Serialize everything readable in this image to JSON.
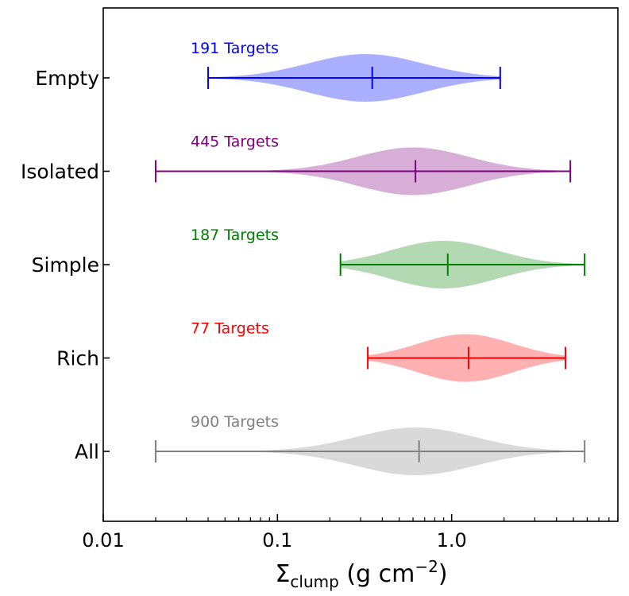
{
  "chart_data": {
    "type": "violin",
    "orientation": "horizontal",
    "xscale": "log",
    "xlim": [
      0.01,
      9.0
    ],
    "xlabel": {
      "base": "Σ",
      "subscript": "clump",
      "units_prefix": " (g cm",
      "superscript": "−2",
      "units_suffix": ")"
    },
    "xticks": [
      {
        "value": 0.01,
        "label": "0.01"
      },
      {
        "value": 0.1,
        "label": "0.1"
      },
      {
        "value": 1.0,
        "label": "1.0"
      }
    ],
    "categories": [
      "Empty",
      "Isolated",
      "Simple",
      "Rich",
      "All"
    ],
    "series": [
      {
        "name": "Empty",
        "count_label": "191 Targets",
        "color": "#0000ff",
        "fill": "#aab0ff",
        "min": 0.04,
        "median": 0.35,
        "max": 1.9,
        "peak": 0.32,
        "width": 0.26,
        "spread": 0.33
      },
      {
        "name": "Isolated",
        "count_label": "445 Targets",
        "color": "#800080",
        "fill": "#d6aed6",
        "min": 0.02,
        "median": 0.62,
        "max": 4.8,
        "peak": 0.6,
        "width": 0.26,
        "spread": 0.32
      },
      {
        "name": "Simple",
        "count_label": "187 Targets",
        "color": "#008000",
        "fill": "#b3d9b3",
        "min": 0.23,
        "median": 0.95,
        "max": 5.8,
        "peak": 0.9,
        "width": 0.26,
        "spread": 0.3
      },
      {
        "name": "Rich",
        "count_label": "77 Targets",
        "color": "#ff0000",
        "fill": "#ffb0b0",
        "min": 0.33,
        "median": 1.25,
        "max": 4.5,
        "peak": 1.2,
        "width": 0.26,
        "spread": 0.27
      },
      {
        "name": "All",
        "count_label": "900 Targets",
        "color": "#808080",
        "fill": "#d9d9d9",
        "min": 0.02,
        "median": 0.65,
        "max": 5.8,
        "peak": 0.62,
        "width": 0.26,
        "spread": 0.34
      }
    ]
  }
}
